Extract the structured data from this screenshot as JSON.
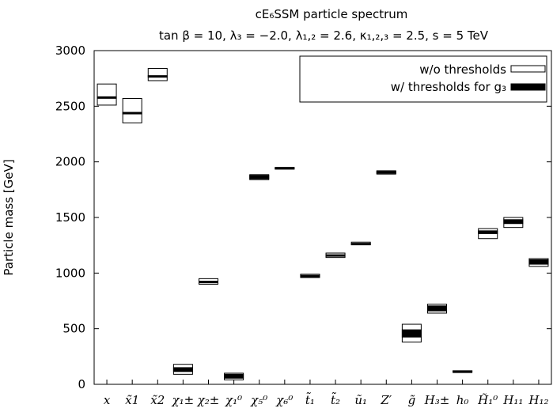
{
  "chart_data": {
    "type": "box",
    "title": "cE₆SSM particle spectrum",
    "subtitle": "tan β = 10, λ₃ = −2.0, λ₁,₂ = 2.6, κ₁,₂,₃ = 2.5, s = 5 TeV",
    "xlabel": "",
    "ylabel": "Particle mass [GeV]",
    "ylim": [
      0,
      3000
    ],
    "yticks": [
      0,
      500,
      1000,
      1500,
      2000,
      2500,
      3000
    ],
    "grid": false,
    "legend_position": "top-right",
    "categories": [
      "x",
      "x̃1",
      "x̃2",
      "χ₁±",
      "χ₂±",
      "χ₁⁰",
      "χ₅⁰",
      "χ₆⁰",
      "t̃₁",
      "t̃₂",
      "ũ₁",
      "Z′",
      "g̃",
      "H₃±",
      "h₀",
      "H̃₁⁰",
      "H₁₁",
      "H₁₂"
    ],
    "series": [
      {
        "name": "w/o thresholds",
        "style": "open",
        "color": "#000000",
        "low": [
          2510,
          2350,
          2730,
          90,
          900,
          40,
          1840,
          1935,
          960,
          1140,
          1255,
          1890,
          380,
          640,
          115,
          1310,
          1410,
          1060
        ],
        "median": [
          2580,
          2440,
          2770,
          130,
          925,
          70,
          1865,
          1945,
          975,
          1160,
          1265,
          1905,
          460,
          680,
          118,
          1370,
          1460,
          1100
        ],
        "high": [
          2700,
          2570,
          2840,
          180,
          950,
          100,
          1885,
          1950,
          990,
          1180,
          1278,
          1920,
          540,
          720,
          122,
          1400,
          1500,
          1130
        ]
      },
      {
        "name": "w/ thresholds for g₃",
        "style": "filled",
        "color": "#000000",
        "low": [
          2575,
          2435,
          2765,
          115,
          923,
          55,
          1848,
          1941,
          970,
          1155,
          1262,
          1897,
          425,
          660,
          116,
          1355,
          1445,
          1080
        ],
        "high": [
          2585,
          2445,
          2775,
          150,
          927,
          90,
          1878,
          1949,
          980,
          1165,
          1268,
          1913,
          490,
          705,
          120,
          1380,
          1480,
          1120
        ]
      }
    ]
  }
}
